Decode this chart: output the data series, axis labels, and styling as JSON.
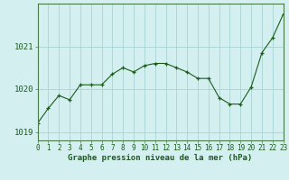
{
  "x": [
    0,
    1,
    2,
    3,
    4,
    5,
    6,
    7,
    8,
    9,
    10,
    11,
    12,
    13,
    14,
    15,
    16,
    17,
    18,
    19,
    20,
    21,
    22,
    23
  ],
  "y": [
    1019.2,
    1019.55,
    1019.85,
    1019.75,
    1020.1,
    1020.1,
    1020.1,
    1020.35,
    1020.5,
    1020.4,
    1020.55,
    1020.6,
    1020.6,
    1020.5,
    1020.4,
    1020.25,
    1020.25,
    1019.8,
    1019.65,
    1019.65,
    1020.05,
    1020.85,
    1021.2,
    1021.75
  ],
  "line_color": "#1a5c1a",
  "marker": "+",
  "bg_color": "#d4efef",
  "grid_color": "#aad4d4",
  "ylim": [
    1018.8,
    1022.0
  ],
  "yticks": [
    1019,
    1020,
    1021
  ],
  "xlim": [
    0,
    23
  ],
  "xticks": [
    0,
    1,
    2,
    3,
    4,
    5,
    6,
    7,
    8,
    9,
    10,
    11,
    12,
    13,
    14,
    15,
    16,
    17,
    18,
    19,
    20,
    21,
    22,
    23
  ],
  "xlabel": "Graphe pression niveau de la mer (hPa)",
  "xlabel_color": "#1a5c1a",
  "tick_color": "#1a5c1a",
  "axis_color": "#4a7a4a",
  "label_fontsize": 5.5,
  "xlabel_fontsize": 6.5
}
